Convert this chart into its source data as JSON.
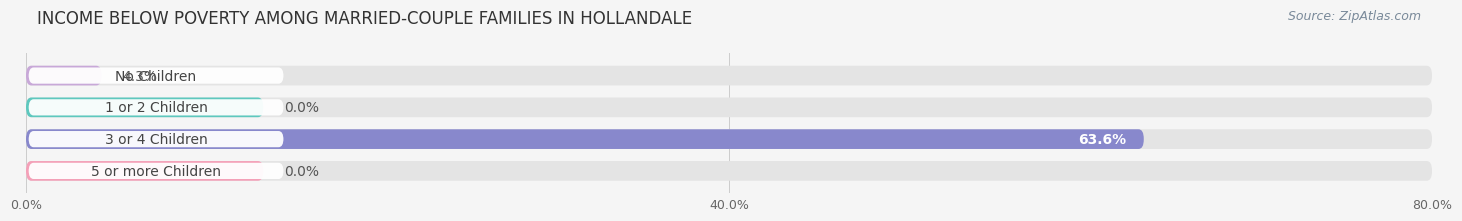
{
  "title": "INCOME BELOW POVERTY AMONG MARRIED-COUPLE FAMILIES IN HOLLANDALE",
  "source": "Source: ZipAtlas.com",
  "categories": [
    "No Children",
    "1 or 2 Children",
    "3 or 4 Children",
    "5 or more Children"
  ],
  "values": [
    4.3,
    0.0,
    63.6,
    0.0
  ],
  "value_labels": [
    "4.3%",
    "0.0%",
    "63.6%",
    "0.0%"
  ],
  "bar_colors": [
    "#c8a8d8",
    "#5ec8be",
    "#8888cc",
    "#f4a0b8"
  ],
  "xlim": [
    0,
    80
  ],
  "xticks": [
    0,
    40,
    80
  ],
  "xtick_labels": [
    "0.0%",
    "40.0%",
    "80.0%"
  ],
  "bar_height": 0.62,
  "background_color": "#f5f5f5",
  "bar_bg_color": "#e4e4e4",
  "title_fontsize": 12,
  "label_fontsize": 10,
  "tick_fontsize": 9,
  "source_fontsize": 9
}
